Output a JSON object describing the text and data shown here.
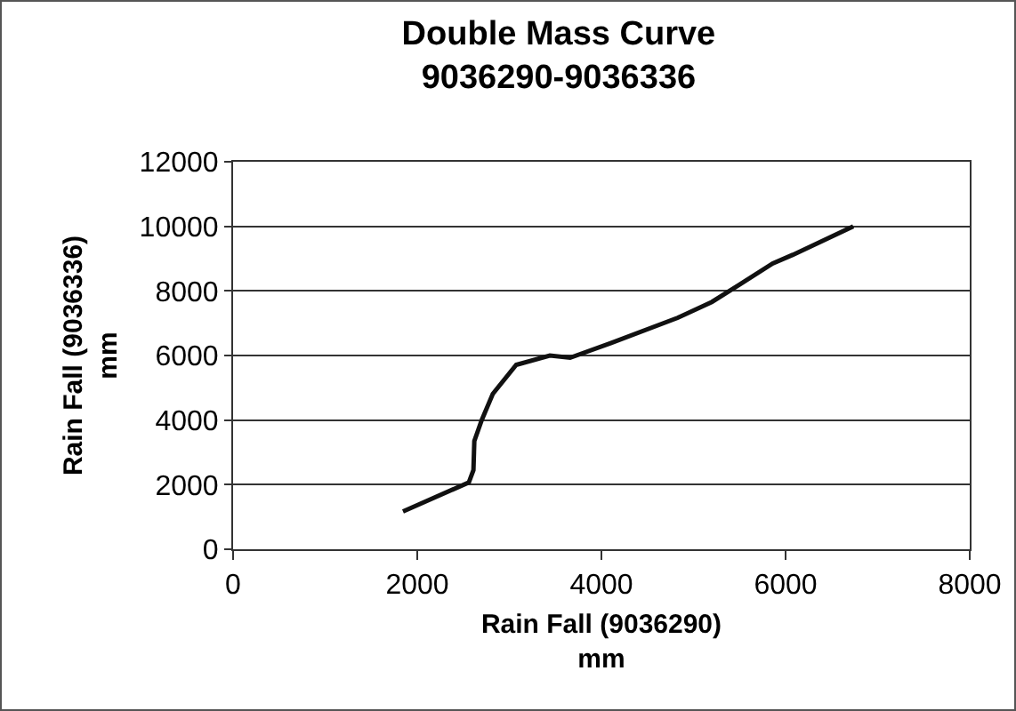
{
  "chart_data": {
    "type": "line",
    "title": "Double Mass Curve",
    "subtitle": "9036290-9036336",
    "xlabel": "Rain Fall (9036290)\nmm",
    "ylabel": "Rain Fall (9036336)\nmm",
    "x": [
      1845,
      2560,
      2610,
      2620,
      2700,
      2820,
      3075,
      3440,
      3660,
      4100,
      4830,
      5200,
      5490,
      5860,
      6080,
      6735
    ],
    "series": [
      {
        "color": "#111111",
        "values": [
          1170,
          2070,
          2450,
          3350,
          4000,
          4810,
          5710,
          6000,
          5930,
          6380,
          7170,
          7660,
          8180,
          8850,
          9120,
          10000
        ]
      }
    ],
    "xlim": [
      0,
      8000
    ],
    "xticks": [
      0,
      2000,
      4000,
      6000,
      8000
    ],
    "ylim": [
      0,
      12000
    ],
    "yticks": [
      0,
      2000,
      4000,
      6000,
      8000,
      10000,
      12000
    ],
    "grid": "y",
    "marker": "none",
    "line_style": "solid"
  }
}
